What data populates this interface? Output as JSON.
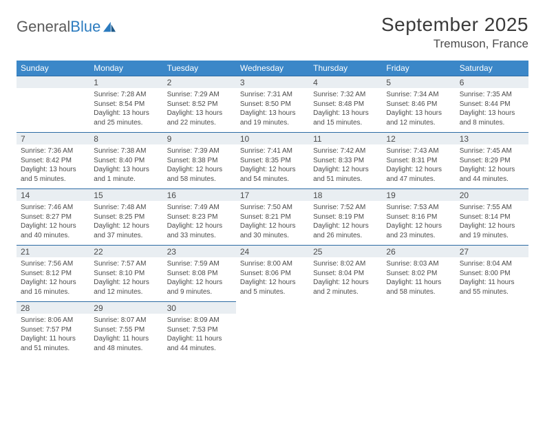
{
  "brand": {
    "part1": "General",
    "part2": "Blue"
  },
  "title": "September 2025",
  "location": "Tremuson, France",
  "colors": {
    "header_bg": "#3b87c8",
    "rule": "#2b6aa3",
    "daynum_bg": "#e9eef2",
    "text": "#4a4a4a",
    "page_bg": "#ffffff"
  },
  "day_names": [
    "Sunday",
    "Monday",
    "Tuesday",
    "Wednesday",
    "Thursday",
    "Friday",
    "Saturday"
  ],
  "weeks": [
    [
      null,
      {
        "n": "1",
        "sr": "Sunrise: 7:28 AM",
        "ss": "Sunset: 8:54 PM",
        "dl": "Daylight: 13 hours and 25 minutes."
      },
      {
        "n": "2",
        "sr": "Sunrise: 7:29 AM",
        "ss": "Sunset: 8:52 PM",
        "dl": "Daylight: 13 hours and 22 minutes."
      },
      {
        "n": "3",
        "sr": "Sunrise: 7:31 AM",
        "ss": "Sunset: 8:50 PM",
        "dl": "Daylight: 13 hours and 19 minutes."
      },
      {
        "n": "4",
        "sr": "Sunrise: 7:32 AM",
        "ss": "Sunset: 8:48 PM",
        "dl": "Daylight: 13 hours and 15 minutes."
      },
      {
        "n": "5",
        "sr": "Sunrise: 7:34 AM",
        "ss": "Sunset: 8:46 PM",
        "dl": "Daylight: 13 hours and 12 minutes."
      },
      {
        "n": "6",
        "sr": "Sunrise: 7:35 AM",
        "ss": "Sunset: 8:44 PM",
        "dl": "Daylight: 13 hours and 8 minutes."
      }
    ],
    [
      {
        "n": "7",
        "sr": "Sunrise: 7:36 AM",
        "ss": "Sunset: 8:42 PM",
        "dl": "Daylight: 13 hours and 5 minutes."
      },
      {
        "n": "8",
        "sr": "Sunrise: 7:38 AM",
        "ss": "Sunset: 8:40 PM",
        "dl": "Daylight: 13 hours and 1 minute."
      },
      {
        "n": "9",
        "sr": "Sunrise: 7:39 AM",
        "ss": "Sunset: 8:38 PM",
        "dl": "Daylight: 12 hours and 58 minutes."
      },
      {
        "n": "10",
        "sr": "Sunrise: 7:41 AM",
        "ss": "Sunset: 8:35 PM",
        "dl": "Daylight: 12 hours and 54 minutes."
      },
      {
        "n": "11",
        "sr": "Sunrise: 7:42 AM",
        "ss": "Sunset: 8:33 PM",
        "dl": "Daylight: 12 hours and 51 minutes."
      },
      {
        "n": "12",
        "sr": "Sunrise: 7:43 AM",
        "ss": "Sunset: 8:31 PM",
        "dl": "Daylight: 12 hours and 47 minutes."
      },
      {
        "n": "13",
        "sr": "Sunrise: 7:45 AM",
        "ss": "Sunset: 8:29 PM",
        "dl": "Daylight: 12 hours and 44 minutes."
      }
    ],
    [
      {
        "n": "14",
        "sr": "Sunrise: 7:46 AM",
        "ss": "Sunset: 8:27 PM",
        "dl": "Daylight: 12 hours and 40 minutes."
      },
      {
        "n": "15",
        "sr": "Sunrise: 7:48 AM",
        "ss": "Sunset: 8:25 PM",
        "dl": "Daylight: 12 hours and 37 minutes."
      },
      {
        "n": "16",
        "sr": "Sunrise: 7:49 AM",
        "ss": "Sunset: 8:23 PM",
        "dl": "Daylight: 12 hours and 33 minutes."
      },
      {
        "n": "17",
        "sr": "Sunrise: 7:50 AM",
        "ss": "Sunset: 8:21 PM",
        "dl": "Daylight: 12 hours and 30 minutes."
      },
      {
        "n": "18",
        "sr": "Sunrise: 7:52 AM",
        "ss": "Sunset: 8:19 PM",
        "dl": "Daylight: 12 hours and 26 minutes."
      },
      {
        "n": "19",
        "sr": "Sunrise: 7:53 AM",
        "ss": "Sunset: 8:16 PM",
        "dl": "Daylight: 12 hours and 23 minutes."
      },
      {
        "n": "20",
        "sr": "Sunrise: 7:55 AM",
        "ss": "Sunset: 8:14 PM",
        "dl": "Daylight: 12 hours and 19 minutes."
      }
    ],
    [
      {
        "n": "21",
        "sr": "Sunrise: 7:56 AM",
        "ss": "Sunset: 8:12 PM",
        "dl": "Daylight: 12 hours and 16 minutes."
      },
      {
        "n": "22",
        "sr": "Sunrise: 7:57 AM",
        "ss": "Sunset: 8:10 PM",
        "dl": "Daylight: 12 hours and 12 minutes."
      },
      {
        "n": "23",
        "sr": "Sunrise: 7:59 AM",
        "ss": "Sunset: 8:08 PM",
        "dl": "Daylight: 12 hours and 9 minutes."
      },
      {
        "n": "24",
        "sr": "Sunrise: 8:00 AM",
        "ss": "Sunset: 8:06 PM",
        "dl": "Daylight: 12 hours and 5 minutes."
      },
      {
        "n": "25",
        "sr": "Sunrise: 8:02 AM",
        "ss": "Sunset: 8:04 PM",
        "dl": "Daylight: 12 hours and 2 minutes."
      },
      {
        "n": "26",
        "sr": "Sunrise: 8:03 AM",
        "ss": "Sunset: 8:02 PM",
        "dl": "Daylight: 11 hours and 58 minutes."
      },
      {
        "n": "27",
        "sr": "Sunrise: 8:04 AM",
        "ss": "Sunset: 8:00 PM",
        "dl": "Daylight: 11 hours and 55 minutes."
      }
    ],
    [
      {
        "n": "28",
        "sr": "Sunrise: 8:06 AM",
        "ss": "Sunset: 7:57 PM",
        "dl": "Daylight: 11 hours and 51 minutes."
      },
      {
        "n": "29",
        "sr": "Sunrise: 8:07 AM",
        "ss": "Sunset: 7:55 PM",
        "dl": "Daylight: 11 hours and 48 minutes."
      },
      {
        "n": "30",
        "sr": "Sunrise: 8:09 AM",
        "ss": "Sunset: 7:53 PM",
        "dl": "Daylight: 11 hours and 44 minutes."
      },
      null,
      null,
      null,
      null
    ]
  ]
}
